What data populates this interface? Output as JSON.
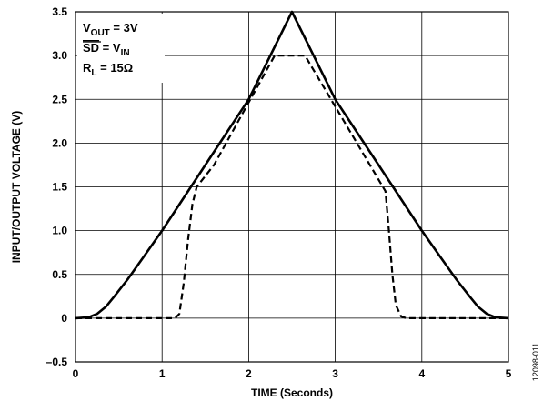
{
  "chart_data": {
    "type": "line",
    "xlabel": "TIME (Seconds)",
    "ylabel": "INPUT/OUTPUT VOLTAGE (V)",
    "xlim": [
      0,
      5
    ],
    "ylim": [
      -0.5,
      3.5
    ],
    "x_ticks": [
      0,
      1,
      2,
      3,
      4,
      5
    ],
    "y_ticks": [
      -0.5,
      0,
      0.5,
      1.0,
      1.5,
      2.0,
      2.5,
      3.0,
      3.5
    ],
    "x_tick_labels": [
      "0",
      "1",
      "2",
      "3",
      "4",
      "5"
    ],
    "y_tick_labels": [
      "–0.5",
      "0",
      "0.5",
      "1.0",
      "1.5",
      "2.0",
      "2.5",
      "3.0",
      "3.5"
    ],
    "grid": true,
    "legend_position": "top-left",
    "conditions": [
      {
        "main": "V",
        "sub": "OUT",
        "tail": " = 3V",
        "overline_main": false
      },
      {
        "main": "SD",
        "sub": "",
        "tail": " = V",
        "tail_sub": "IN",
        "overline_main": true
      },
      {
        "main": "R",
        "sub": "L",
        "tail": " = 15Ω",
        "overline_main": false
      }
    ],
    "figure_id": "12098-011",
    "series": [
      {
        "style": "solid",
        "x": [
          0,
          0.15,
          0.25,
          0.35,
          0.45,
          0.6,
          0.8,
          1.0,
          1.5,
          2.0,
          2.5,
          3.0,
          3.5,
          4.0,
          4.2,
          4.4,
          4.55,
          4.65,
          4.75,
          4.85,
          5.0
        ],
        "y": [
          0,
          0.01,
          0.05,
          0.13,
          0.25,
          0.44,
          0.72,
          1.0,
          1.75,
          2.5,
          3.5,
          2.5,
          1.75,
          1.0,
          0.72,
          0.44,
          0.25,
          0.13,
          0.05,
          0.01,
          0
        ]
      },
      {
        "style": "dashed",
        "x": [
          0,
          1.15,
          1.2,
          1.25,
          1.3,
          1.35,
          1.4,
          1.6,
          2.3,
          2.65,
          3.4,
          3.58,
          3.62,
          3.66,
          3.7,
          3.76,
          3.82,
          5.0
        ],
        "y": [
          0,
          0,
          0.05,
          0.4,
          0.9,
          1.3,
          1.5,
          1.75,
          3.0,
          3.0,
          1.75,
          1.45,
          1.0,
          0.5,
          0.15,
          0.02,
          0,
          0
        ]
      }
    ]
  }
}
